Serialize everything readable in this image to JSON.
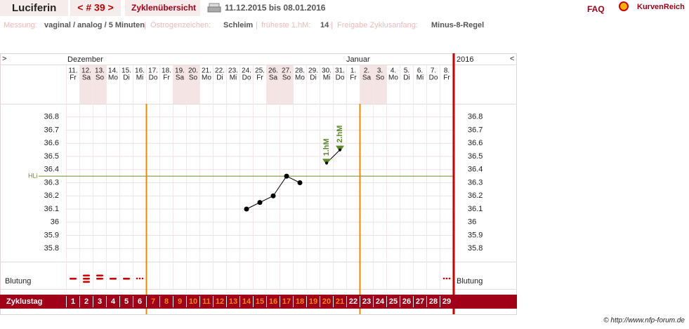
{
  "header": {
    "name": "Luciferin",
    "cycle": "< # 39 >",
    "overview": "Zyklenübersicht",
    "range": "11.12.2015 bis 08.01.2016",
    "faq": "FAQ",
    "brand": "KurvenReich"
  },
  "info": {
    "separator": "|",
    "items": [
      {
        "label": "Messung:",
        "value": "vaginal / analog / 5 Minuten"
      },
      {
        "label": "Östrogenzeichen:",
        "value": "Schleim"
      },
      {
        "label": "früheste 1.hM:",
        "value": "14"
      },
      {
        "label": "Freigabe Zyklusanfang:",
        "value": "Minus-8-Regel"
      }
    ]
  },
  "chart_data": {
    "type": "line",
    "nav_prev": ">",
    "nav_next": "<",
    "year": "2016",
    "months": [
      "Dezember",
      "Januar"
    ],
    "categories": [
      "11.",
      "12.",
      "13.",
      "14.",
      "15.",
      "16.",
      "17.",
      "18.",
      "19.",
      "20.",
      "21.",
      "22.",
      "23.",
      "24.",
      "25.",
      "26.",
      "27.",
      "28.",
      "29.",
      "30.",
      "31.",
      "1.",
      "2.",
      "3.",
      "4.",
      "5.",
      "6.",
      "7.",
      "8."
    ],
    "weekdays": [
      "Fr",
      "Sa",
      "So",
      "Mo",
      "Di",
      "Mi",
      "Do",
      "Fr",
      "Sa",
      "So",
      "Mo",
      "Di",
      "Mi",
      "Do",
      "Fr",
      "Sa",
      "So",
      "Mo",
      "Di",
      "Mi",
      "Do",
      "Fr",
      "Sa",
      "So",
      "Mo",
      "Di",
      "Mi",
      "Do",
      "Fr"
    ],
    "values": [
      null,
      null,
      null,
      null,
      null,
      null,
      null,
      null,
      null,
      null,
      null,
      null,
      null,
      36.1,
      36.15,
      36.2,
      36.35,
      36.3,
      null,
      36.45,
      36.55,
      null,
      null,
      null,
      null,
      null,
      null,
      null,
      null
    ],
    "hm_labels": [
      null,
      null,
      null,
      null,
      null,
      null,
      null,
      null,
      null,
      null,
      null,
      null,
      null,
      null,
      null,
      null,
      null,
      null,
      null,
      "1.hM",
      "2.hM",
      null,
      null,
      null,
      null,
      null,
      null,
      null,
      null
    ],
    "color": "#000000",
    "hm_color": "#5a8a2a",
    "ylim": [
      35.7,
      36.9
    ],
    "yticks": [
      35.8,
      35.9,
      36,
      36.1,
      36.2,
      36.3,
      36.4,
      36.5,
      36.6,
      36.7,
      36.8
    ],
    "grid": true,
    "hli": {
      "label": "HLi",
      "value": 36.35,
      "color": "#6b8e23"
    },
    "fertile_window": [
      7,
      22
    ],
    "window_color": "#f08a00",
    "bleeding_label": "Blutung",
    "bleeding": [
      1,
      3,
      2,
      1,
      1,
      0,
      null,
      null,
      null,
      null,
      null,
      null,
      null,
      null,
      null,
      null,
      null,
      null,
      null,
      null,
      null,
      null,
      null,
      null,
      null,
      null,
      null,
      null,
      0
    ],
    "bleeding_color": "#cc0000",
    "cycle_label": "Zyklustag",
    "cycle_days": [
      1,
      2,
      3,
      4,
      5,
      6,
      7,
      8,
      9,
      10,
      11,
      12,
      13,
      14,
      15,
      16,
      17,
      18,
      19,
      20,
      21,
      22,
      23,
      24,
      25,
      26,
      27,
      28,
      29
    ]
  },
  "copyright": "© http://www.nfp-forum.de"
}
